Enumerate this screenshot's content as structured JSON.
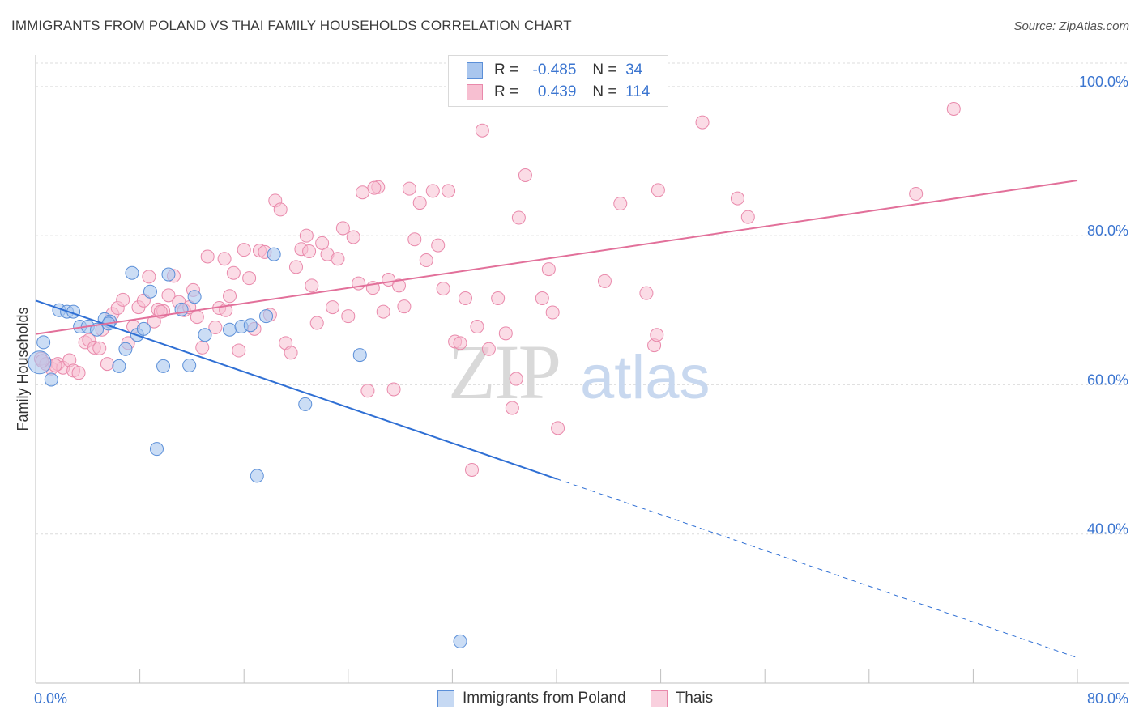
{
  "chart_data": {
    "type": "scatter",
    "title": "IMMIGRANTS FROM POLAND VS THAI FAMILY HOUSEHOLDS CORRELATION CHART",
    "source": "Source: ZipAtlas.com",
    "xlabel": "",
    "ylabel": "Family Households",
    "x_min_label": "0.0%",
    "x_max_label": "80.0%",
    "xlim": [
      0,
      80
    ],
    "ylim": [
      20,
      104
    ],
    "y_ticks": [
      {
        "value": 40,
        "label": "40.0%"
      },
      {
        "value": 60,
        "label": "60.0%"
      },
      {
        "value": 80,
        "label": "80.0%"
      },
      {
        "value": 100,
        "label": "100.0%"
      }
    ],
    "grid": true,
    "legend_position": "top-center",
    "watermark": "ZIPatlas",
    "colors": {
      "poland_fill": "#a9c6ee",
      "poland_stroke": "#5b8fd8",
      "poland_line": "#2f6fd4",
      "thai_fill": "#f7bfd1",
      "thai_stroke": "#e989ab",
      "thai_line": "#e2709a",
      "accent_text": "#3b75d0"
    },
    "legend_stats": [
      {
        "series": "Immigrants from Poland",
        "r_label": "R =",
        "r": "-0.485",
        "n_label": "N =",
        "n": "34"
      },
      {
        "series": "Thais",
        "r_label": "R =",
        "r": "0.439",
        "n_label": "N =",
        "n": "114"
      }
    ],
    "series": [
      {
        "name": "Immigrants from Poland",
        "trend": {
          "x0": 0,
          "y0": 71.3,
          "x1": 40,
          "y1": 47.4,
          "dash_x1": 80,
          "dash_y1": 23.4
        },
        "points": [
          [
            0.3,
            63.0
          ],
          [
            0.6,
            65.7
          ],
          [
            1.2,
            60.7
          ],
          [
            1.8,
            70.0
          ],
          [
            2.4,
            69.8
          ],
          [
            2.9,
            69.8
          ],
          [
            3.4,
            67.8
          ],
          [
            4.0,
            67.8
          ],
          [
            4.7,
            67.4
          ],
          [
            5.3,
            68.8
          ],
          [
            5.7,
            68.5
          ],
          [
            6.4,
            62.5
          ],
          [
            6.9,
            64.8
          ],
          [
            7.4,
            75.0
          ],
          [
            7.8,
            66.7
          ],
          [
            8.3,
            67.5
          ],
          [
            8.8,
            72.5
          ],
          [
            9.3,
            51.4
          ],
          [
            9.8,
            62.5
          ],
          [
            10.2,
            74.8
          ],
          [
            11.2,
            70.1
          ],
          [
            11.8,
            62.6
          ],
          [
            12.2,
            71.8
          ],
          [
            13.0,
            66.7
          ],
          [
            14.9,
            67.4
          ],
          [
            15.8,
            67.8
          ],
          [
            16.5,
            68.0
          ],
          [
            17.0,
            47.8
          ],
          [
            17.7,
            69.2
          ],
          [
            18.3,
            77.5
          ],
          [
            20.7,
            57.4
          ],
          [
            24.9,
            64.0
          ],
          [
            32.6,
            25.6
          ],
          [
            5.6,
            68.2
          ]
        ]
      },
      {
        "name": "Thais",
        "trend": {
          "x0": 0,
          "y0": 66.8,
          "x1": 80,
          "y1": 87.4
        },
        "points": [
          [
            0.4,
            63.5
          ],
          [
            0.8,
            62.8
          ],
          [
            1.2,
            62.2
          ],
          [
            1.7,
            62.8
          ],
          [
            2.1,
            62.3
          ],
          [
            2.6,
            63.3
          ],
          [
            2.9,
            61.9
          ],
          [
            3.3,
            61.6
          ],
          [
            3.8,
            65.7
          ],
          [
            4.1,
            66.0
          ],
          [
            4.5,
            65.0
          ],
          [
            4.9,
            64.9
          ],
          [
            5.1,
            67.4
          ],
          [
            5.5,
            62.8
          ],
          [
            5.9,
            69.5
          ],
          [
            6.3,
            70.3
          ],
          [
            6.7,
            71.4
          ],
          [
            7.1,
            65.6
          ],
          [
            7.5,
            67.8
          ],
          [
            7.9,
            70.4
          ],
          [
            8.3,
            71.3
          ],
          [
            8.7,
            74.5
          ],
          [
            9.1,
            68.5
          ],
          [
            9.4,
            70.1
          ],
          [
            9.8,
            69.9
          ],
          [
            10.2,
            72.0
          ],
          [
            10.6,
            74.6
          ],
          [
            11.0,
            71.1
          ],
          [
            11.4,
            70.0
          ],
          [
            11.8,
            70.4
          ],
          [
            12.1,
            72.7
          ],
          [
            12.4,
            69.1
          ],
          [
            12.8,
            65.0
          ],
          [
            13.2,
            77.2
          ],
          [
            13.8,
            67.7
          ],
          [
            14.1,
            70.3
          ],
          [
            14.5,
            76.9
          ],
          [
            14.9,
            71.9
          ],
          [
            15.2,
            75.0
          ],
          [
            15.6,
            64.6
          ],
          [
            16.0,
            78.1
          ],
          [
            16.4,
            74.3
          ],
          [
            16.8,
            67.5
          ],
          [
            17.2,
            78.0
          ],
          [
            17.6,
            77.8
          ],
          [
            18.0,
            69.4
          ],
          [
            18.4,
            84.7
          ],
          [
            18.8,
            83.5
          ],
          [
            19.2,
            65.6
          ],
          [
            19.6,
            64.3
          ],
          [
            20.0,
            75.8
          ],
          [
            20.4,
            78.2
          ],
          [
            20.8,
            80.0
          ],
          [
            21.2,
            73.3
          ],
          [
            21.6,
            68.3
          ],
          [
            22.0,
            79.0
          ],
          [
            22.4,
            77.5
          ],
          [
            22.8,
            70.4
          ],
          [
            23.2,
            76.9
          ],
          [
            23.6,
            81.0
          ],
          [
            24.0,
            69.2
          ],
          [
            24.4,
            79.8
          ],
          [
            24.8,
            73.6
          ],
          [
            25.1,
            85.8
          ],
          [
            25.5,
            59.2
          ],
          [
            25.9,
            73.0
          ],
          [
            26.3,
            86.5
          ],
          [
            26.7,
            69.8
          ],
          [
            27.1,
            74.1
          ],
          [
            27.5,
            59.4
          ],
          [
            27.9,
            73.3
          ],
          [
            28.3,
            70.5
          ],
          [
            28.7,
            86.3
          ],
          [
            29.1,
            79.5
          ],
          [
            29.5,
            84.4
          ],
          [
            30.0,
            76.7
          ],
          [
            30.5,
            86.0
          ],
          [
            30.9,
            78.7
          ],
          [
            31.3,
            72.9
          ],
          [
            31.7,
            86.0
          ],
          [
            32.2,
            65.8
          ],
          [
            32.6,
            65.6
          ],
          [
            33.0,
            71.6
          ],
          [
            33.5,
            48.6
          ],
          [
            33.9,
            67.8
          ],
          [
            34.3,
            94.1
          ],
          [
            34.8,
            64.8
          ],
          [
            35.5,
            71.6
          ],
          [
            36.1,
            66.9
          ],
          [
            36.6,
            56.9
          ],
          [
            36.9,
            60.8
          ],
          [
            37.1,
            82.4
          ],
          [
            37.6,
            88.1
          ],
          [
            38.9,
            71.6
          ],
          [
            39.4,
            75.5
          ],
          [
            39.7,
            69.7
          ],
          [
            40.1,
            54.2
          ],
          [
            43.7,
            73.9
          ],
          [
            44.9,
            84.3
          ],
          [
            46.9,
            72.3
          ],
          [
            47.5,
            65.3
          ],
          [
            47.7,
            66.7
          ],
          [
            47.8,
            86.1
          ],
          [
            51.2,
            95.2
          ],
          [
            53.9,
            85.0
          ],
          [
            54.7,
            82.5
          ],
          [
            67.6,
            85.6
          ],
          [
            70.5,
            97.0
          ],
          [
            0.5,
            63.2
          ],
          [
            1.5,
            62.6
          ],
          [
            9.6,
            69.8
          ],
          [
            14.6,
            70.0
          ],
          [
            21.0,
            77.9
          ],
          [
            26.0,
            86.4
          ]
        ]
      }
    ]
  }
}
